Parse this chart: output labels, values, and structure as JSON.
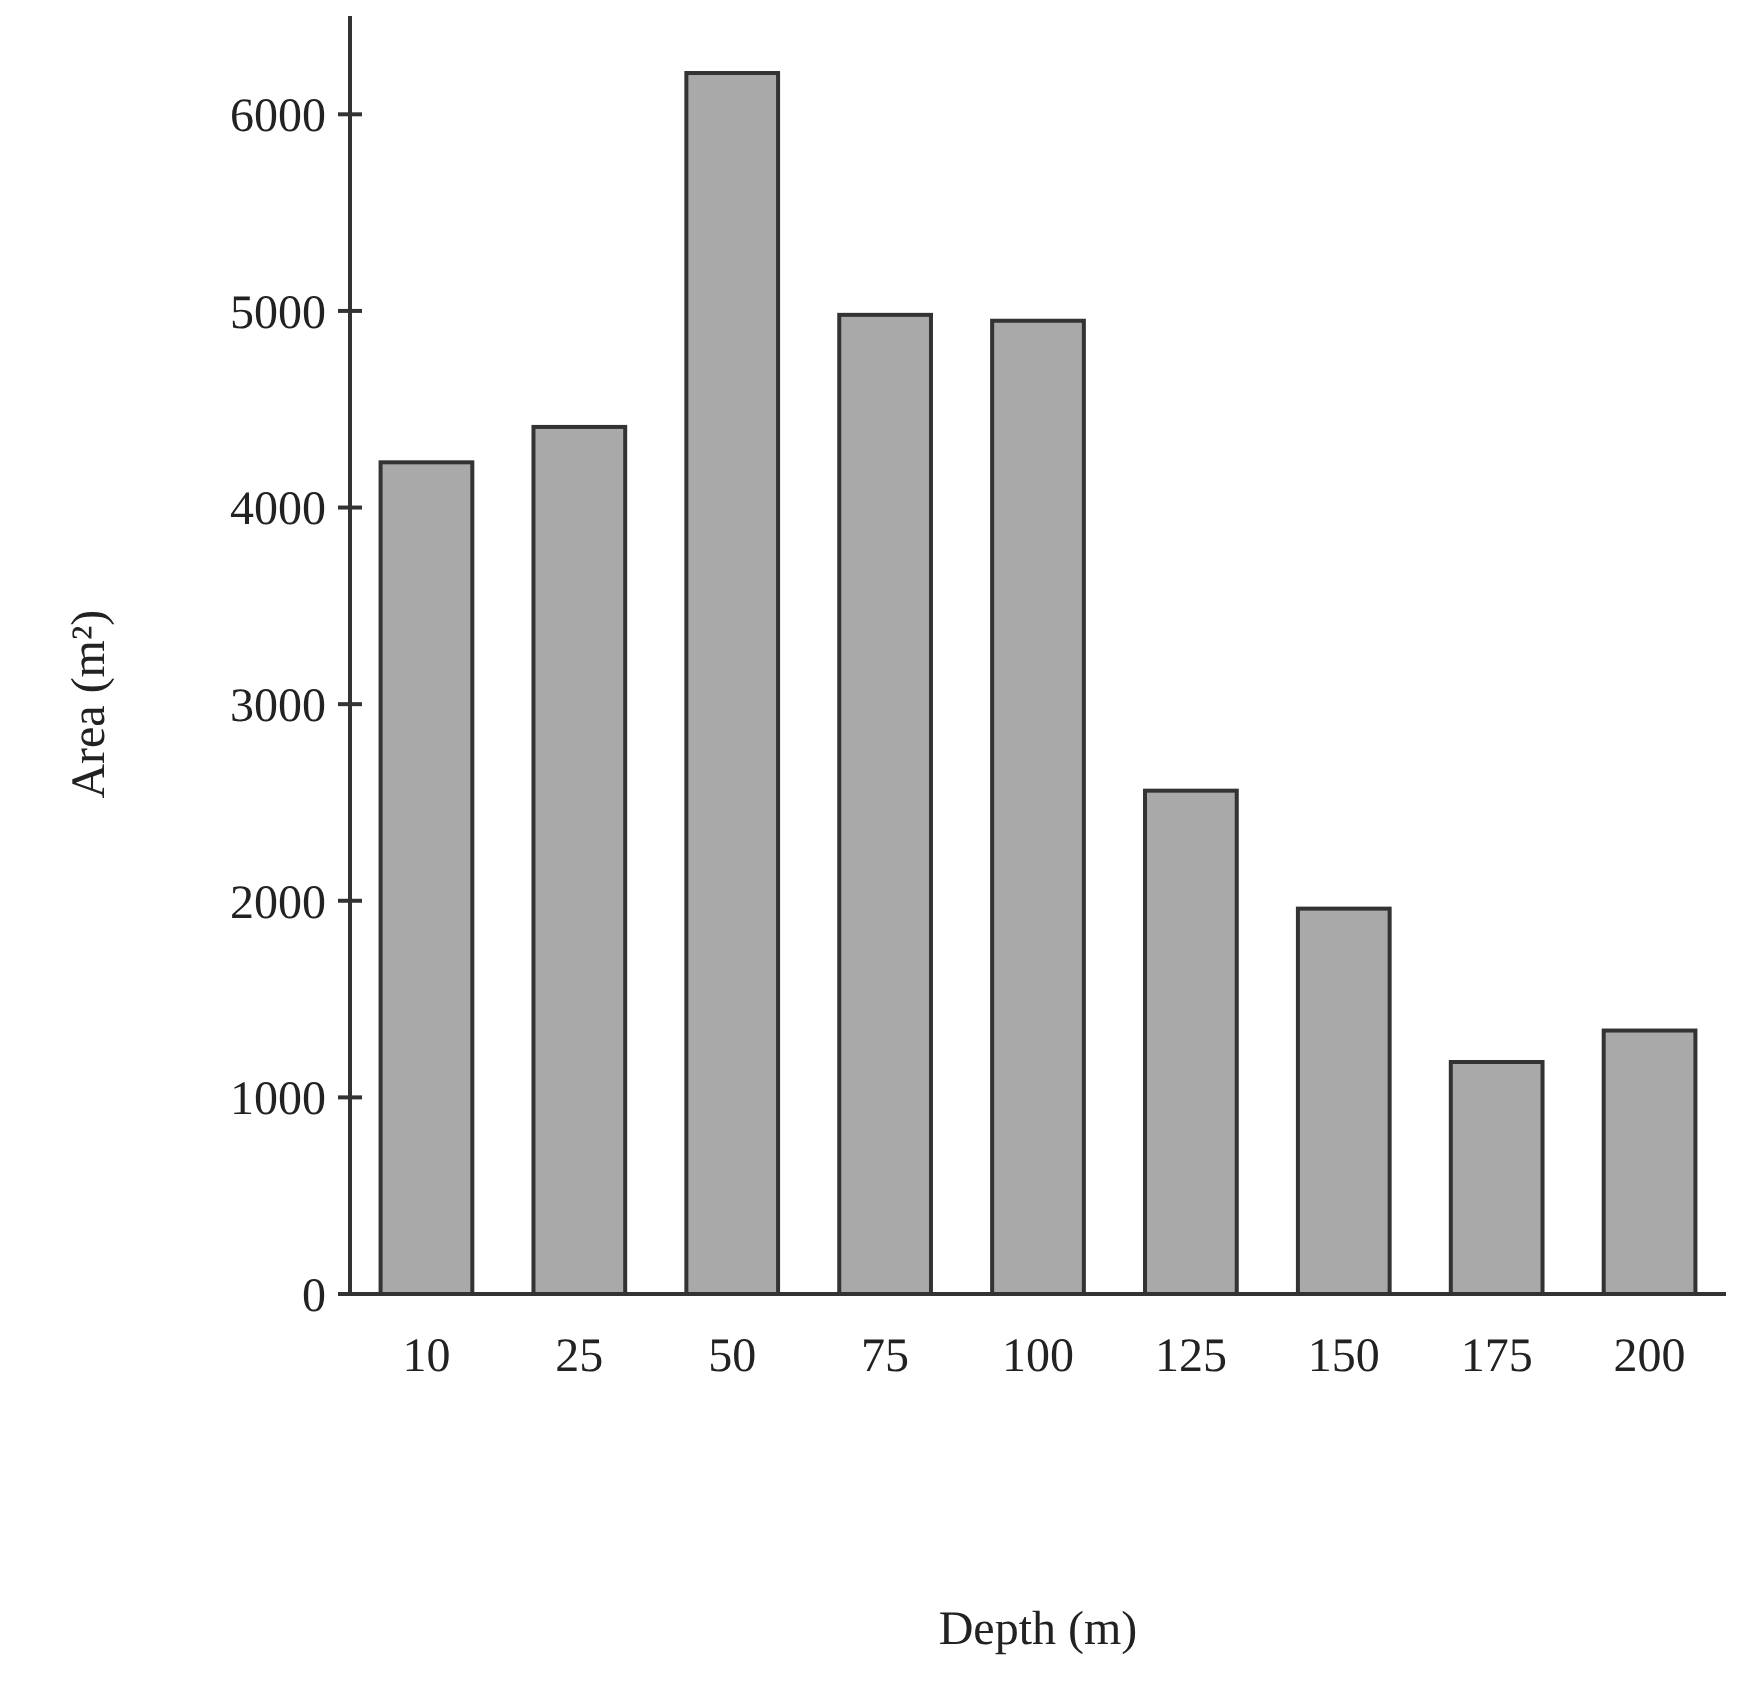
{
  "chart_data": {
    "type": "bar",
    "xlabel": "Depth (m)",
    "ylabel": "Area (m²)",
    "categories": [
      "10",
      "25",
      "50",
      "75",
      "100",
      "125",
      "150",
      "175",
      "200"
    ],
    "values": [
      4230,
      4410,
      6210,
      4980,
      4950,
      2560,
      1960,
      1180,
      1340
    ],
    "color": "#a9a9a9",
    "ylim": [
      0,
      6500
    ],
    "yticks": [
      0,
      1000,
      2000,
      3000,
      4000,
      5000,
      6000
    ],
    "grid": false
  }
}
